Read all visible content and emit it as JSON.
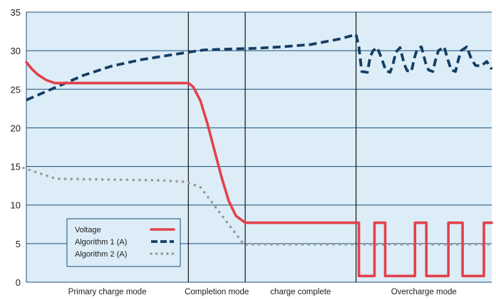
{
  "chart_data": {
    "type": "line",
    "ylim": [
      0,
      35
    ],
    "yticks": [
      "0",
      "5",
      "10",
      "15",
      "20",
      "25",
      "30",
      "35"
    ],
    "grid": true,
    "legend_placement": "bottom-left",
    "plot_background": "#dcedf7",
    "phases": [
      {
        "label": "Primary charge mode",
        "start": 0,
        "end": 228
      },
      {
        "label": "Completion mode",
        "start": 228,
        "end": 308
      },
      {
        "label": "charge complete",
        "start": 308,
        "end": 464
      },
      {
        "label": "Overcharge mode",
        "start": 464,
        "end": 655
      }
    ],
    "x_range": [
      0,
      655
    ],
    "series": [
      {
        "name": "Voltage",
        "color": "#e2414c",
        "style": "solid",
        "points": [
          [
            0,
            28.5
          ],
          [
            8,
            27.6
          ],
          [
            16,
            26.9
          ],
          [
            28,
            26.2
          ],
          [
            40,
            25.8
          ],
          [
            120,
            25.8
          ],
          [
            200,
            25.8
          ],
          [
            228,
            25.8
          ],
          [
            235,
            25.3
          ],
          [
            245,
            23.5
          ],
          [
            255,
            20.5
          ],
          [
            265,
            17.0
          ],
          [
            275,
            13.5
          ],
          [
            285,
            10.5
          ],
          [
            295,
            8.6
          ],
          [
            308,
            7.7
          ],
          [
            464,
            7.7
          ],
          [
            468,
            7.7
          ],
          [
            468,
            0.8
          ],
          [
            490,
            0.8
          ],
          [
            490,
            7.7
          ],
          [
            505,
            7.7
          ],
          [
            505,
            0.8
          ],
          [
            547,
            0.8
          ],
          [
            547,
            7.7
          ],
          [
            563,
            7.7
          ],
          [
            563,
            0.8
          ],
          [
            594,
            0.8
          ],
          [
            594,
            7.7
          ],
          [
            614,
            7.7
          ],
          [
            614,
            0.8
          ],
          [
            644,
            0.8
          ],
          [
            644,
            7.7
          ],
          [
            655,
            7.7
          ]
        ]
      },
      {
        "name": "Algorithm 1 (A)",
        "color": "#153d63",
        "style": "dashed",
        "points": [
          [
            0,
            23.6
          ],
          [
            40,
            25.2
          ],
          [
            80,
            26.8
          ],
          [
            120,
            28.0
          ],
          [
            160,
            28.8
          ],
          [
            200,
            29.4
          ],
          [
            228,
            29.8
          ],
          [
            250,
            30.1
          ],
          [
            280,
            30.2
          ],
          [
            320,
            30.3
          ],
          [
            360,
            30.5
          ],
          [
            400,
            30.8
          ],
          [
            440,
            31.5
          ],
          [
            464,
            32.1
          ],
          [
            468,
            30.5
          ],
          [
            472,
            27.3
          ],
          [
            480,
            27.2
          ],
          [
            484,
            29.2
          ],
          [
            488,
            30.0
          ],
          [
            494,
            30.4
          ],
          [
            500,
            29.0
          ],
          [
            506,
            27.4
          ],
          [
            512,
            27.2
          ],
          [
            516,
            28.2
          ],
          [
            520,
            29.8
          ],
          [
            526,
            30.4
          ],
          [
            532,
            28.2
          ],
          [
            536,
            27.4
          ],
          [
            542,
            27.3
          ],
          [
            546,
            29.0
          ],
          [
            550,
            30.2
          ],
          [
            556,
            30.5
          ],
          [
            562,
            28.4
          ],
          [
            566,
            27.5
          ],
          [
            572,
            27.3
          ],
          [
            576,
            28.8
          ],
          [
            580,
            30.0
          ],
          [
            588,
            30.5
          ],
          [
            594,
            28.6
          ],
          [
            598,
            27.5
          ],
          [
            604,
            27.3
          ],
          [
            608,
            28.8
          ],
          [
            612,
            30.0
          ],
          [
            620,
            30.5
          ],
          [
            626,
            29.0
          ],
          [
            632,
            28.1
          ],
          [
            640,
            28.0
          ],
          [
            648,
            28.6
          ],
          [
            655,
            27.6
          ]
        ]
      },
      {
        "name": "Algorithm 2 (A)",
        "color": "#999999",
        "style": "dotted",
        "points": [
          [
            -4,
            14.8
          ],
          [
            42,
            13.4
          ],
          [
            190,
            13.2
          ],
          [
            224,
            13.0
          ],
          [
            245,
            12.3
          ],
          [
            306,
            4.9
          ],
          [
            464,
            4.9
          ],
          [
            468,
            4.9
          ],
          [
            655,
            4.9
          ]
        ]
      }
    ]
  }
}
